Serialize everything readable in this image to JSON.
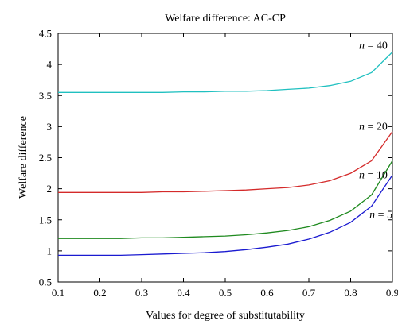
{
  "chart_data": {
    "type": "line",
    "title": "Welfare difference: AC-CP",
    "xlabel": "Values for degree of substitutability",
    "ylabel": "Welfare difference",
    "xlim": [
      0.1,
      0.9
    ],
    "ylim": [
      0.5,
      4.5
    ],
    "xticks": [
      0.1,
      0.2,
      0.3,
      0.4,
      0.5,
      0.6,
      0.7,
      0.8,
      0.9
    ],
    "yticks": [
      0.5,
      1,
      1.5,
      2,
      2.5,
      3,
      3.5,
      4,
      4.5
    ],
    "xtick_labels": [
      "0.1",
      "0.2",
      "0.3",
      "0.4",
      "0.5",
      "0.6",
      "0.7",
      "0.8",
      "0.9"
    ],
    "ytick_labels": [
      "0.5",
      "1",
      "1.5",
      "2",
      "2.5",
      "3",
      "3.5",
      "4",
      "4.5"
    ],
    "grid": false,
    "x": [
      0.1,
      0.15,
      0.2,
      0.25,
      0.3,
      0.35,
      0.4,
      0.45,
      0.5,
      0.55,
      0.6,
      0.65,
      0.7,
      0.75,
      0.8,
      0.85,
      0.9
    ],
    "series": [
      {
        "label_var": "n",
        "label_value": "40",
        "color": "#20c0c0",
        "label_pos": [
          0.82,
          4.25
        ],
        "values": [
          3.55,
          3.55,
          3.55,
          3.55,
          3.55,
          3.55,
          3.56,
          3.56,
          3.57,
          3.57,
          3.58,
          3.6,
          3.62,
          3.66,
          3.73,
          3.87,
          4.2
        ]
      },
      {
        "label_var": "n",
        "label_value": "20",
        "color": "#d42a2a",
        "label_pos": [
          0.82,
          2.95
        ],
        "values": [
          1.94,
          1.94,
          1.94,
          1.94,
          1.94,
          1.95,
          1.95,
          1.96,
          1.97,
          1.98,
          2.0,
          2.02,
          2.06,
          2.13,
          2.25,
          2.45,
          2.92
        ]
      },
      {
        "label_var": "n",
        "label_value": "10",
        "color": "#1f8a1f",
        "label_pos": [
          0.82,
          2.17
        ],
        "values": [
          1.2,
          1.2,
          1.2,
          1.2,
          1.21,
          1.21,
          1.22,
          1.23,
          1.24,
          1.26,
          1.29,
          1.33,
          1.39,
          1.49,
          1.64,
          1.9,
          2.45
        ]
      },
      {
        "label_var": "n",
        "label_value": "5",
        "color": "#1a1ad0",
        "label_pos": [
          0.845,
          1.53
        ],
        "values": [
          0.93,
          0.93,
          0.93,
          0.93,
          0.94,
          0.95,
          0.96,
          0.97,
          0.99,
          1.02,
          1.06,
          1.11,
          1.19,
          1.3,
          1.46,
          1.72,
          2.22
        ]
      }
    ]
  }
}
